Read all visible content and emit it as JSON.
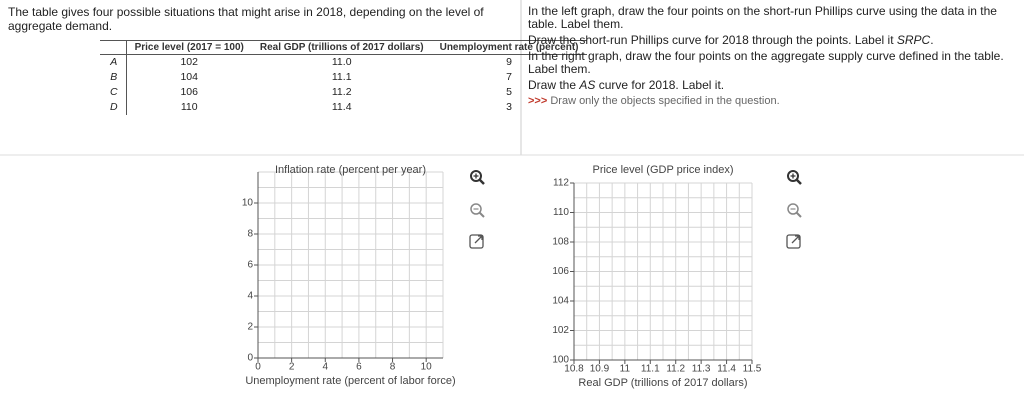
{
  "intro": "The table gives four possible situations that might arise in 2018, depending on the level of aggregate demand.",
  "table": {
    "headers": [
      "Price level (2017 = 100)",
      "Real GDP (trillions of 2017 dollars)",
      "Unemployment rate (percent)"
    ],
    "rows": [
      [
        "A",
        "102",
        "11.0",
        "9"
      ],
      [
        "B",
        "104",
        "11.1",
        "7"
      ],
      [
        "C",
        "106",
        "11.2",
        "5"
      ],
      [
        "D",
        "110",
        "11.4",
        "3"
      ]
    ]
  },
  "instructions": [
    {
      "text": "In the left graph, draw the four points on the short-run Phillips curve using the data in the table. Label them."
    },
    {
      "text": "Draw the short-run Phillips curve for 2018 through the points. Label it ",
      "em": "SRPC",
      "end": "."
    },
    {
      "text": "In the right graph, draw the four points on the aggregate supply curve defined in the table. Label them."
    },
    {
      "text": "Draw the ",
      "em": "AS",
      "end": " curve for 2018. Label it."
    }
  ],
  "hint_marker": ">>>",
  "hint": "Draw only the objects specified in the question.",
  "graphs": [
    {
      "ylabel": "Inflation rate (percent per year)",
      "xlabel": "Unemployment rate (percent of labor force)",
      "xlim": [
        0,
        11
      ],
      "ylim": [
        0,
        12
      ],
      "xticks": [
        0,
        2,
        4,
        6,
        8,
        10
      ],
      "yticks": [
        0,
        2,
        4,
        6,
        8,
        10
      ],
      "grid": true
    },
    {
      "ylabel": "Price level (GDP price index)",
      "xlabel": "Real GDP (trillions of 2017 dollars)",
      "xlim": [
        10.8,
        11.5
      ],
      "ylim": [
        100,
        112
      ],
      "xticks": [
        10.8,
        10.9,
        11,
        11.1,
        11.2,
        11.3,
        11.4,
        11.5
      ],
      "yticks": [
        100,
        102,
        104,
        106,
        108,
        110,
        112
      ],
      "grid": true
    }
  ]
}
